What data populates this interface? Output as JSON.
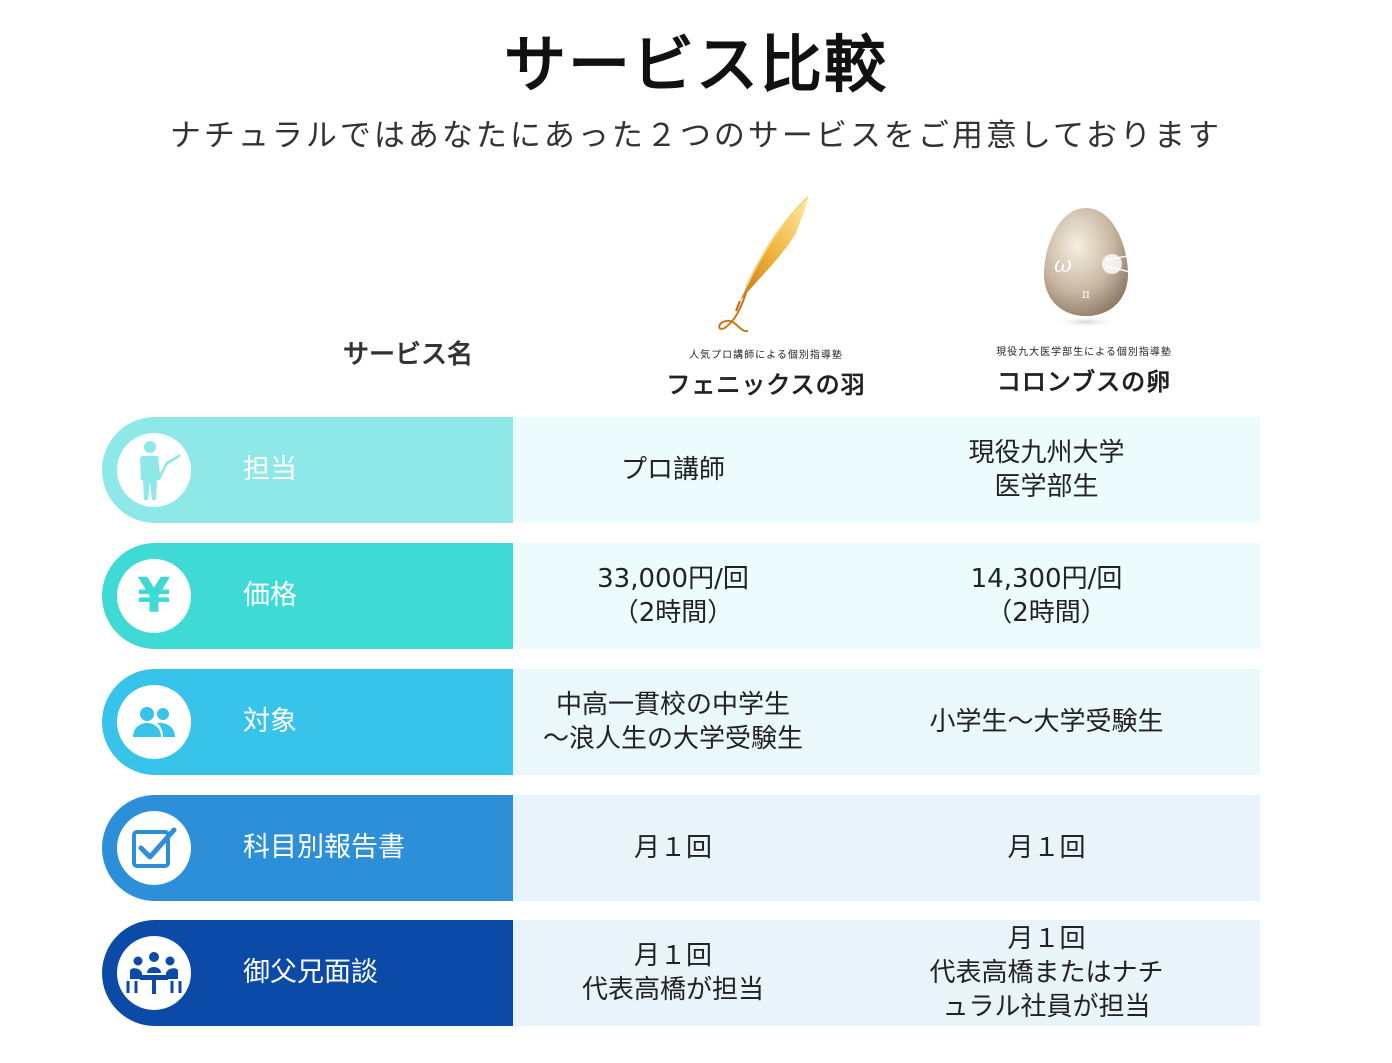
{
  "title": "サービス比較",
  "subtitle": "ナチュラルではあなたにあった２つのサービスをご用意しております",
  "service_header": "サービス名",
  "services": [
    {
      "tagline": "人気プロ講師による個別指導塾",
      "name": "フェニックスの羽",
      "logo_icon": "golden-feather-icon"
    },
    {
      "tagline": "現役九大医学部生による個別指導塾",
      "name": "コロンブスの卵",
      "logo_icon": "pearl-egg-icon"
    }
  ],
  "rows": [
    {
      "label": "担当",
      "icon": "teacher-icon",
      "color": "#8fe8e8",
      "cell_bg": "#ecfbfb",
      "values": [
        [
          "プロ講師"
        ],
        [
          "現役九州大学",
          "医学部生"
        ]
      ]
    },
    {
      "label": "価格",
      "icon": "yen-icon",
      "color": "#3fd9d6",
      "cell_bg": "#ecfbfb",
      "values": [
        [
          "33,000円/回",
          "（2時間）"
        ],
        [
          "14,300円/回",
          "（2時間）"
        ]
      ]
    },
    {
      "label": "対象",
      "icon": "people-icon",
      "color": "#37c3ea",
      "cell_bg": "#eaf7fb",
      "values": [
        [
          "中高一貫校の中学生",
          "〜浪人生の大学受験生"
        ],
        [
          "小学生〜大学受験生"
        ]
      ]
    },
    {
      "label": "科目別報告書",
      "icon": "checkbox-icon",
      "color": "#2c8fd8",
      "cell_bg": "#e9f3fa",
      "values": [
        [
          "月１回"
        ],
        [
          "月１回"
        ]
      ]
    },
    {
      "label": "御父兄面談",
      "icon": "meeting-icon",
      "color": "#0b4aa6",
      "cell_bg": "#e9f3fa",
      "values": [
        [
          "月１回",
          "代表高橋が担当"
        ],
        [
          "月１回",
          "代表高橋またはナチ",
          "ュラル社員が担当"
        ]
      ]
    }
  ]
}
